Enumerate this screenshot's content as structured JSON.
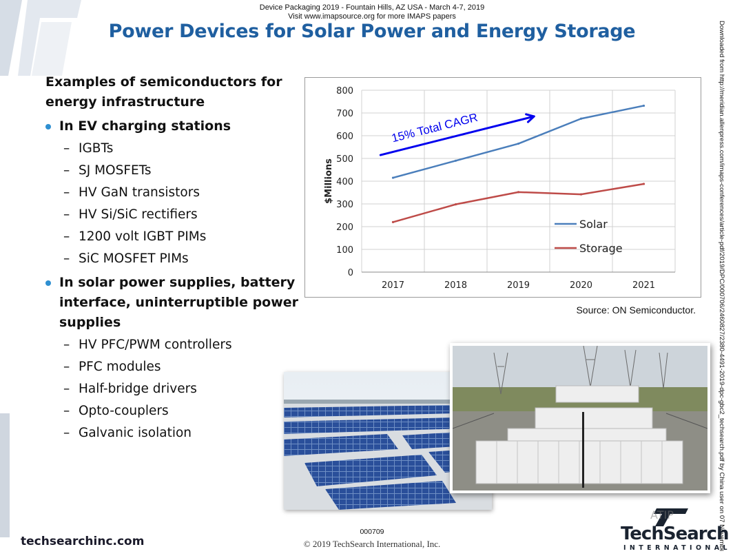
{
  "header": {
    "conference_line1": "Device Packaging 2019 - Fountain Hills, AZ USA - March 4-7, 2019",
    "conference_line2": "Visit www.imapsource.org for more IMAPS papers"
  },
  "title": "Power Devices for Solar Power and Energy Storage",
  "side_text": "Downloaded from http://meridian.allenpress.com/imaps-conferences/article-pdf/2019/DPC/000706/2460827/2380-4491-2019-dpc-gbc2_techsearch.pdf by China user on 07 November 2021",
  "content": {
    "heading": "Examples of semiconductors for energy infrastructure",
    "groups": [
      {
        "title": "In EV charging stations",
        "items": [
          "IGBTs",
          "SJ MOSFETs",
          "HV GaN transistors",
          "HV Si/SiC rectifiers",
          "1200 volt IGBT PIMs",
          "SiC MOSFET PIMs"
        ]
      },
      {
        "title": "In solar power supplies, battery interface, uninterruptible power supplies",
        "items": [
          "HV PFC/PWM controllers",
          "PFC modules",
          "Half-bridge drivers",
          "Opto-couplers",
          "Galvanic isolation"
        ]
      }
    ],
    "dash": "–"
  },
  "chart_data": {
    "type": "line",
    "title": "",
    "xlabel": "",
    "ylabel": "$Millions",
    "categories": [
      "2017",
      "2018",
      "2019",
      "2020",
      "2021"
    ],
    "yticks": [
      0,
      100,
      200,
      300,
      400,
      500,
      600,
      700,
      800
    ],
    "ylim": [
      0,
      800
    ],
    "grid": true,
    "legend_position": "bottom-right",
    "series": [
      {
        "name": "Solar",
        "values": [
          415,
          490,
          565,
          675,
          732
        ],
        "color": "#4a7ebb"
      },
      {
        "name": "Storage",
        "values": [
          220,
          298,
          352,
          342,
          388
        ],
        "color": "#be4b48"
      }
    ],
    "annotation": {
      "text": "15% Total CAGR",
      "color": "#0000ee",
      "arrow_from": [
        -0.2,
        515
      ],
      "arrow_to": [
        2.25,
        685
      ]
    }
  },
  "source_note": "Source:  ON Semiconductor.",
  "footer": {
    "site": "techsearchinc.com",
    "slide_number": "000709",
    "copyright": "© 2019 TechSearch International, Inc.",
    "logo_name": "TechSearch",
    "logo_sub": "INTERNATIONAL",
    "watermark": "ATIP"
  },
  "colors": {
    "title": "#1f5fa0",
    "bullet": "#2e8fd1"
  }
}
